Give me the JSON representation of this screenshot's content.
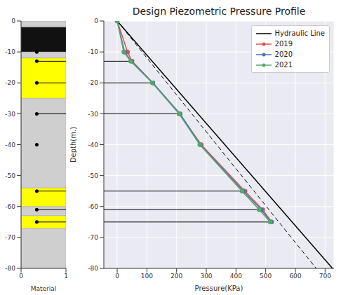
{
  "chart_data": [
    {
      "type": "line",
      "title": "Design Piezometric Pressure Profile",
      "xlabel": "Pressure(KPa)",
      "ylabel": "Depth(m.)",
      "xlim": [
        -45,
        730
      ],
      "xticks": [
        0,
        100,
        200,
        300,
        400,
        500,
        600,
        700
      ],
      "ylim": [
        -80,
        0
      ],
      "yticks": [
        0,
        -10,
        -20,
        -30,
        -40,
        -50,
        -60,
        -70,
        -80
      ],
      "grid": true,
      "legend": "upper right",
      "series": [
        {
          "name": "Hydraulic Line",
          "color": "#000000",
          "marker": "none",
          "line_style": "solid",
          "x": [
            0,
            725
          ],
          "y": [
            0,
            -80
          ]
        },
        {
          "name": "2019",
          "color": "#d9534f",
          "marker": "o",
          "line_style": "solid",
          "x": [
            0,
            35,
            50,
            120,
            210,
            283,
            430,
            490,
            520
          ],
          "y": [
            0,
            -10,
            -13,
            -20,
            -30,
            -40,
            -55,
            -61,
            -65
          ]
        },
        {
          "name": "2020",
          "color": "#4c72b0",
          "marker": "o",
          "line_style": "solid",
          "x": [
            0,
            25,
            48,
            120,
            212,
            280,
            425,
            485,
            518
          ],
          "y": [
            0,
            -10,
            -13,
            -20,
            -30,
            -40,
            -55,
            -61,
            -65
          ]
        },
        {
          "name": "2021",
          "color": "#55a868",
          "marker": "o",
          "line_style": "solid",
          "x": [
            0,
            22,
            45,
            118,
            208,
            278,
            420,
            478,
            515
          ],
          "y": [
            0,
            -10,
            -13,
            -20,
            -30,
            -40,
            -55,
            -61,
            -65
          ]
        }
      ],
      "reference_line": {
        "x": [
          0,
          670
        ],
        "y": [
          0,
          -80
        ],
        "color": "#000000",
        "line_style": "dashed"
      }
    },
    {
      "type": "column",
      "xlabel": "Material",
      "xlim": [
        0,
        1
      ],
      "xticks": [
        0,
        1
      ],
      "ylim": [
        -80,
        0
      ],
      "yticks": [
        0,
        -10,
        -20,
        -30,
        -40,
        -50,
        -60,
        -70,
        -80
      ],
      "layers": [
        {
          "top": 0,
          "bottom": -2,
          "color": "#cfcfcf"
        },
        {
          "top": -2,
          "bottom": -10,
          "color": "#111111"
        },
        {
          "top": -10,
          "bottom": -12,
          "color": "#cfcfcf"
        },
        {
          "top": -12,
          "bottom": -25,
          "color": "#ffff00"
        },
        {
          "top": -25,
          "bottom": -54,
          "color": "#cfcfcf"
        },
        {
          "top": -54,
          "bottom": -60,
          "color": "#ffff00"
        },
        {
          "top": -60,
          "bottom": -63,
          "color": "#cfcfcf"
        },
        {
          "top": -63,
          "bottom": -67,
          "color": "#ffff00"
        },
        {
          "top": -67,
          "bottom": -80,
          "color": "#cfcfcf"
        }
      ],
      "piezometers": {
        "x": 0.35,
        "y": [
          -10,
          -13,
          -20,
          -30,
          -40,
          -55,
          -61,
          -65
        ],
        "leader": [
          false,
          true,
          true,
          true,
          false,
          true,
          true,
          true
        ],
        "color": "#000000"
      }
    }
  ]
}
